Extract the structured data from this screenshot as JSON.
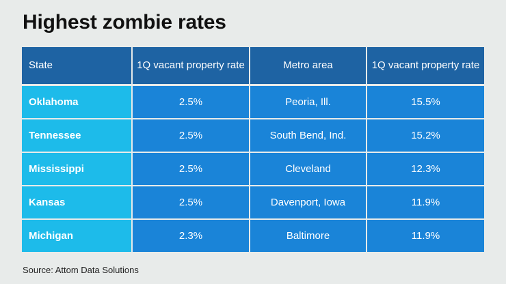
{
  "title": "Highest zombie rates",
  "source": "Source: Attom Data Solutions",
  "colors": {
    "background": "#e8ebea",
    "header": "#1e63a3",
    "state_column": "#1dbbea",
    "value_cells": "#1a84d8"
  },
  "chart_data": {
    "type": "table",
    "title": "Highest zombie rates",
    "columns": [
      "State",
      "1Q vacant property rate",
      "Metro area",
      "1Q vacant property rate"
    ],
    "rows": [
      [
        "Oklahoma",
        "2.5%",
        "Peoria, Ill.",
        "15.5%"
      ],
      [
        "Tennessee",
        "2.5%",
        "South Bend, Ind.",
        "15.2%"
      ],
      [
        "Mississippi",
        "2.5%",
        "Cleveland",
        "12.3%"
      ],
      [
        "Kansas",
        "2.5%",
        "Davenport, Iowa",
        "11.9%"
      ],
      [
        "Michigan",
        "2.3%",
        "Baltimore",
        "11.9%"
      ]
    ],
    "source": "Source: Attom Data Solutions"
  }
}
